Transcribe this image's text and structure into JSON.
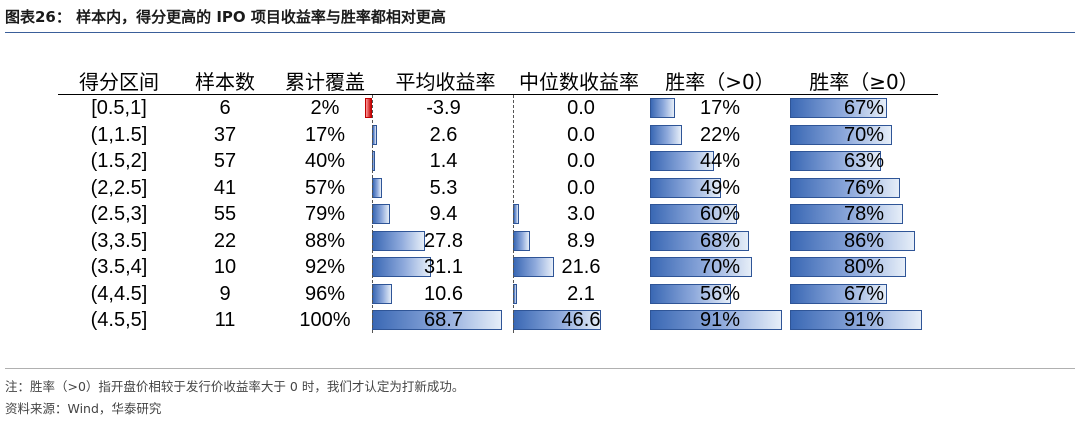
{
  "title": "图表26：  样本内，得分更高的 IPO 项目收益率与胜率都相对更高",
  "headers": {
    "range": "得分区间",
    "count": "样本数",
    "coverage": "累计覆盖",
    "avg_return": "平均收益率",
    "median_return": "中位数收益率",
    "win_gt0": "胜率（>0）",
    "win_ge0": "胜率（≥0）"
  },
  "rows": [
    {
      "range": "[0.5,1]",
      "count": "6",
      "coverage": "2%",
      "avg": "-3.9",
      "median": "0.0",
      "win_gt0": "17%",
      "win_ge0": "67%"
    },
    {
      "range": "(1,1.5]",
      "count": "37",
      "coverage": "17%",
      "avg": "2.6",
      "median": "0.0",
      "win_gt0": "22%",
      "win_ge0": "70%"
    },
    {
      "range": "(1.5,2]",
      "count": "57",
      "coverage": "40%",
      "avg": "1.4",
      "median": "0.0",
      "win_gt0": "44%",
      "win_ge0": "63%"
    },
    {
      "range": "(2,2.5]",
      "count": "41",
      "coverage": "57%",
      "avg": "5.3",
      "median": "0.0",
      "win_gt0": "49%",
      "win_ge0": "76%"
    },
    {
      "range": "(2.5,3]",
      "count": "55",
      "coverage": "79%",
      "avg": "9.4",
      "median": "3.0",
      "win_gt0": "60%",
      "win_ge0": "78%"
    },
    {
      "range": "(3,3.5]",
      "count": "22",
      "coverage": "88%",
      "avg": "27.8",
      "median": "8.9",
      "win_gt0": "68%",
      "win_ge0": "86%"
    },
    {
      "range": "(3.5,4]",
      "count": "10",
      "coverage": "92%",
      "avg": "31.1",
      "median": "21.6",
      "win_gt0": "70%",
      "win_ge0": "80%"
    },
    {
      "range": "(4,4.5]",
      "count": "9",
      "coverage": "96%",
      "avg": "10.6",
      "median": "2.1",
      "win_gt0": "56%",
      "win_ge0": "67%"
    },
    {
      "range": "(4.5,5]",
      "count": "11",
      "coverage": "100%",
      "avg": "68.7",
      "median": "46.6",
      "win_gt0": "91%",
      "win_ge0": "91%"
    }
  ],
  "notes": {
    "note": "注：胜率（>0）指开盘价相较于发行价收益率大于 0 时，我们才认定为打新成功。",
    "source": "资料来源：Wind，华泰研究"
  },
  "colors": {
    "bar_positive": "#3a68b4",
    "bar_negative": "#c00000",
    "title_rule": "#3a5f9a"
  }
}
